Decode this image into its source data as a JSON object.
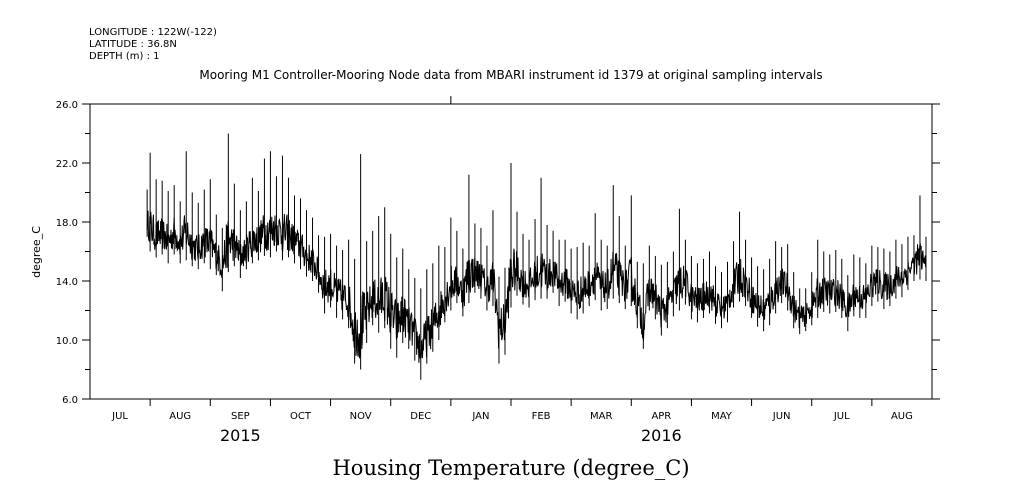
{
  "header": {
    "longitude": "LONGITUDE : 122W(-122)",
    "latitude": "LATITUDE : 36.8N",
    "depth": "DEPTH (m) : 1"
  },
  "chart_data": {
    "type": "line",
    "title": "Mooring M1 Controller-Mooring Node data from MBARI instrument id 1379 at original sampling intervals",
    "xlabel": "Housing Temperature (degree_C)",
    "ylabel": "degree_C",
    "ylim": [
      6.0,
      26.0
    ],
    "yticks": [
      "6.0",
      "10.0",
      "14.0",
      "18.0",
      "22.0",
      "26.0"
    ],
    "y_minor_step": 2,
    "xlim_months": [
      0,
      14
    ],
    "month_labels": [
      "JUL",
      "AUG",
      "SEP",
      "OCT",
      "NOV",
      "DEC",
      "JAN",
      "FEB",
      "MAR",
      "APR",
      "MAY",
      "JUN",
      "JUL",
      "AUG"
    ],
    "year_labels": [
      {
        "label": "2015",
        "month": 2.5
      },
      {
        "label": "2016",
        "month": 9.5
      }
    ],
    "series": [
      {
        "name": "Housing Temperature",
        "color": "#000000",
        "x_months": [
          0.95,
          1.0,
          1.1,
          1.2,
          1.3,
          1.4,
          1.5,
          1.6,
          1.7,
          1.8,
          1.9,
          2.0,
          2.1,
          2.2,
          2.3,
          2.4,
          2.5,
          2.6,
          2.7,
          2.8,
          2.9,
          3.0,
          3.1,
          3.2,
          3.3,
          3.4,
          3.5,
          3.6,
          3.7,
          3.8,
          3.9,
          4.0,
          4.1,
          4.2,
          4.3,
          4.4,
          4.5,
          4.6,
          4.7,
          4.8,
          4.9,
          5.0,
          5.1,
          5.2,
          5.3,
          5.4,
          5.5,
          5.6,
          5.7,
          5.8,
          5.9,
          6.0,
          6.1,
          6.2,
          6.3,
          6.4,
          6.5,
          6.6,
          6.7,
          6.8,
          6.9,
          7.0,
          7.1,
          7.2,
          7.3,
          7.4,
          7.5,
          7.6,
          7.7,
          7.8,
          7.9,
          8.0,
          8.1,
          8.2,
          8.3,
          8.4,
          8.5,
          8.6,
          8.7,
          8.8,
          8.9,
          9.0,
          9.1,
          9.2,
          9.3,
          9.4,
          9.5,
          9.6,
          9.7,
          9.8,
          9.9,
          10.0,
          10.1,
          10.2,
          10.3,
          10.4,
          10.5,
          10.6,
          10.7,
          10.8,
          10.9,
          11.0,
          11.1,
          11.2,
          11.3,
          11.4,
          11.5,
          11.6,
          11.7,
          11.8,
          11.9,
          12.0,
          12.1,
          12.2,
          12.3,
          12.4,
          12.5,
          12.6,
          12.7,
          12.8,
          12.9,
          13.0,
          13.1,
          13.2,
          13.3,
          13.4,
          13.5,
          13.6,
          13.7,
          13.8,
          13.9
        ],
        "mean": [
          18.2,
          17.4,
          17.0,
          17.2,
          16.8,
          17.5,
          16.8,
          17.2,
          16.5,
          16.2,
          16.8,
          16.5,
          16.0,
          15.7,
          16.2,
          16.5,
          15.8,
          16.2,
          16.8,
          16.9,
          17.2,
          17.2,
          17.8,
          17.0,
          17.4,
          16.9,
          16.5,
          15.8,
          15.5,
          14.8,
          13.9,
          14.0,
          13.5,
          13.2,
          12.8,
          11.0,
          9.6,
          11.8,
          12.8,
          12.4,
          12.8,
          12.0,
          11.5,
          12.0,
          11.2,
          10.5,
          9.6,
          10.2,
          11.0,
          12.0,
          13.0,
          13.8,
          14.0,
          13.4,
          14.2,
          14.8,
          14.5,
          13.8,
          14.2,
          11.4,
          11.6,
          14.2,
          14.8,
          14.1,
          13.9,
          14.3,
          14.5,
          14.4,
          14.9,
          14.1,
          14.3,
          13.6,
          13.3,
          13.6,
          14.2,
          14.5,
          13.8,
          13.9,
          14.6,
          14.3,
          13.9,
          14.1,
          12.9,
          11.3,
          13.8,
          13.2,
          12.1,
          12.6,
          13.4,
          13.8,
          14.2,
          13.2,
          12.9,
          13.2,
          13.6,
          12.9,
          12.4,
          12.8,
          13.9,
          14.5,
          14.1,
          13.2,
          12.6,
          12.4,
          12.8,
          13.6,
          14.3,
          13.8,
          12.6,
          11.8,
          11.9,
          12.5,
          13.2,
          13.6,
          13.5,
          13.5,
          13.1,
          12.4,
          13.4,
          13.2,
          13.2,
          14.1,
          14.3,
          13.9,
          14.0,
          14.4,
          14.6,
          15.0,
          15.6,
          15.6,
          15.3
        ],
        "lo": [
          17.0,
          16.0,
          15.6,
          15.8,
          15.2,
          15.8,
          15.2,
          15.4,
          15.0,
          14.8,
          15.2,
          14.8,
          14.4,
          13.3,
          14.6,
          15.0,
          14.2,
          14.8,
          15.2,
          15.4,
          15.7,
          15.6,
          16.0,
          15.4,
          15.6,
          15.2,
          14.8,
          14.3,
          14.0,
          13.2,
          11.8,
          12.2,
          11.5,
          11.4,
          10.8,
          8.4,
          8.0,
          9.8,
          11.0,
          10.5,
          10.8,
          9.4,
          8.8,
          9.8,
          9.4,
          8.6,
          7.3,
          8.4,
          9.2,
          10.0,
          11.2,
          12.0,
          12.5,
          11.6,
          12.5,
          13.2,
          12.8,
          12.0,
          12.3,
          8.4,
          9.0,
          12.2,
          13.0,
          12.4,
          12.2,
          12.7,
          12.8,
          12.8,
          13.2,
          12.3,
          12.6,
          11.8,
          11.4,
          11.8,
          12.3,
          12.7,
          12.0,
          12.1,
          12.8,
          12.5,
          12.1,
          12.3,
          10.8,
          9.4,
          12.0,
          11.4,
          10.3,
          10.8,
          11.6,
          12.0,
          12.4,
          11.4,
          11.2,
          11.5,
          11.8,
          11.1,
          10.8,
          11.2,
          12.2,
          12.6,
          12.3,
          11.5,
          10.9,
          10.6,
          11.0,
          11.8,
          12.5,
          12.0,
          10.8,
          10.4,
          10.6,
          11.0,
          11.5,
          11.9,
          11.8,
          11.9,
          11.5,
          10.6,
          11.6,
          11.5,
          11.5,
          12.3,
          12.6,
          12.1,
          12.3,
          12.8,
          12.9,
          13.4,
          14.0,
          14.1,
          14.0
        ],
        "hi": [
          20.2,
          22.7,
          20.9,
          20.8,
          20.1,
          20.5,
          19.4,
          22.8,
          20.0,
          19.3,
          20.2,
          20.9,
          18.5,
          17.6,
          24.0,
          20.6,
          18.8,
          19.4,
          21.0,
          20.1,
          22.3,
          22.8,
          21.1,
          22.5,
          21.0,
          19.8,
          19.6,
          18.8,
          18.3,
          17.1,
          17.0,
          17.2,
          16.4,
          16.1,
          16.8,
          15.5,
          22.6,
          16.7,
          17.4,
          18.4,
          19.0,
          17.2,
          15.6,
          16.2,
          14.8,
          14.2,
          13.5,
          14.8,
          15.2,
          16.4,
          16.3,
          18.3,
          17.4,
          16.2,
          21.2,
          17.9,
          17.6,
          16.4,
          18.8,
          14.3,
          14.9,
          22.0,
          18.7,
          17.2,
          16.8,
          18.2,
          21.0,
          17.8,
          17.4,
          16.8,
          16.8,
          16.2,
          16.3,
          16.6,
          16.4,
          18.6,
          16.8,
          16.4,
          20.5,
          18.4,
          16.4,
          19.8,
          15.3,
          15.2,
          16.4,
          15.7,
          15.1,
          15.3,
          16.0,
          18.9,
          16.8,
          15.7,
          15.2,
          15.5,
          16.0,
          15.0,
          14.6,
          15.3,
          16.7,
          18.7,
          16.8,
          15.6,
          15.0,
          14.8,
          15.5,
          16.7,
          16.3,
          16.5,
          14.6,
          13.5,
          13.5,
          14.6,
          16.8,
          16.0,
          15.8,
          16.1,
          15.5,
          14.4,
          15.8,
          15.6,
          15.2,
          16.4,
          16.3,
          16.2,
          16.0,
          16.8,
          16.5,
          17.0,
          17.1,
          19.8,
          17.0
        ]
      }
    ]
  }
}
